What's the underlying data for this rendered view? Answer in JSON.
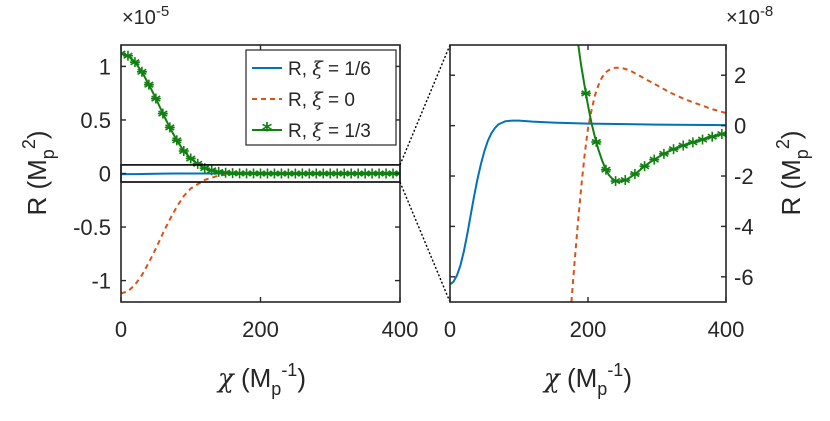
{
  "chart_data": [
    {
      "type": "line",
      "name": "main",
      "xlabel": "χ (M_p^-1)",
      "ylabel": "R (M_p^2)",
      "xlim": [
        0,
        400
      ],
      "ylim": [
        -1.2,
        1.2
      ],
      "multiplier": "×10",
      "multiplier_exp": "-5",
      "x_ticks": [
        0,
        200,
        400
      ],
      "x_tick_labels": [
        "0",
        "200",
        "400"
      ],
      "y_ticks": [
        1,
        0.5,
        0,
        -0.5,
        -1
      ],
      "y_tick_labels": [
        "1",
        "0.5",
        "0",
        "-0.5",
        "-1"
      ],
      "zoom_box_ylim": [
        -0.08,
        0.08
      ],
      "legend_position": "top-right",
      "series": [
        {
          "name": "R, ξ = 1/6",
          "legend_main": "R,",
          "legend_xi": "ξ",
          "legend_val": "= 1/6",
          "color": "#0072BD",
          "style": "solid",
          "x": [
            0,
            20,
            40,
            60,
            80,
            100,
            120,
            140,
            160,
            200,
            300,
            400
          ],
          "y": [
            -0.0063,
            -0.0057,
            -0.0035,
            -0.0012,
            -0.0002,
            0.0001,
            0.0001,
            0.0001,
            0.0001,
            0.0,
            0.0,
            0.0
          ]
        },
        {
          "name": "R, ξ = 0",
          "legend_main": "R,",
          "legend_xi": "ξ",
          "legend_val": "= 0",
          "color": "#D95319",
          "style": "dashed",
          "x": [
            0,
            10,
            20,
            30,
            40,
            50,
            60,
            70,
            80,
            90,
            100,
            120,
            140,
            160,
            180,
            200,
            250,
            300,
            400
          ],
          "y": [
            -1.12,
            -1.1,
            -1.04,
            -0.95,
            -0.83,
            -0.7,
            -0.56,
            -0.43,
            -0.31,
            -0.21,
            -0.14,
            -0.06,
            -0.02,
            -0.005,
            -0.001,
            0.0002,
            0.0002,
            0.0001,
            0.0
          ]
        },
        {
          "name": "R, ξ = 1/3",
          "legend_main": "R,",
          "legend_xi": "ξ",
          "legend_val": "= 1/3",
          "color": "#118011",
          "style": "solid-star",
          "x": [
            0,
            10,
            20,
            30,
            40,
            50,
            60,
            70,
            80,
            90,
            100,
            110,
            120,
            130,
            140,
            150,
            160,
            170,
            180,
            190,
            200,
            210,
            220,
            230,
            240,
            250,
            260,
            270,
            280,
            290,
            300,
            310,
            320,
            330,
            340,
            350,
            360,
            370,
            380,
            390,
            400
          ],
          "y": [
            1.12,
            1.1,
            1.04,
            0.95,
            0.83,
            0.7,
            0.56,
            0.43,
            0.31,
            0.21,
            0.14,
            0.09,
            0.05,
            0.03,
            0.015,
            0.007,
            0.003,
            0.001,
            0.0003,
            0.0001,
            0.0,
            -0.0001,
            -0.0002,
            -0.0002,
            -0.0002,
            -0.0002,
            -0.0002,
            -0.0002,
            -0.0001,
            -0.0001,
            -0.0001,
            -0.0001,
            -0.0001,
            -0.0001,
            -0.0001,
            0.0,
            0.0,
            0.0,
            0.0,
            0.0,
            0.0
          ]
        }
      ]
    },
    {
      "type": "line",
      "name": "zoom",
      "xlabel": "χ (M_p^-1)",
      "ylabel": "R (M_p^2)",
      "xlim": [
        0,
        400
      ],
      "ylim": [
        -7,
        3.2
      ],
      "multiplier": "×10",
      "multiplier_exp": "-8",
      "x_ticks": [
        0,
        200,
        400
      ],
      "x_tick_labels": [
        "0",
        "200",
        "400"
      ],
      "y_ticks": [
        2,
        0,
        -2,
        -4,
        -6
      ],
      "y_tick_labels": [
        "2",
        "0",
        "-2",
        "-4",
        "-6"
      ],
      "series": [
        {
          "name": "R, ξ = 1/6",
          "color": "#0072BD",
          "style": "solid",
          "x": [
            0,
            5,
            10,
            15,
            20,
            25,
            30,
            35,
            40,
            45,
            50,
            55,
            60,
            65,
            70,
            80,
            90,
            100,
            110,
            120,
            150,
            200,
            300,
            400
          ],
          "y": [
            -6.3,
            -6.2,
            -5.95,
            -5.55,
            -5.0,
            -4.3,
            -3.55,
            -2.8,
            -2.1,
            -1.5,
            -1.0,
            -0.6,
            -0.3,
            -0.1,
            0.05,
            0.17,
            0.2,
            0.2,
            0.18,
            0.16,
            0.12,
            0.08,
            0.04,
            0.02
          ]
        },
        {
          "name": "R, ξ = 0",
          "color": "#D95319",
          "style": "dashed",
          "x": [
            176,
            180,
            185,
            190,
            195,
            200,
            205,
            210,
            215,
            220,
            225,
            230,
            235,
            240,
            245,
            250,
            260,
            270,
            280,
            300,
            320,
            340,
            360,
            380,
            400
          ],
          "y": [
            -7.0,
            -5.6,
            -4.0,
            -2.5,
            -1.2,
            -0.1,
            0.6,
            1.2,
            1.6,
            1.9,
            2.1,
            2.2,
            2.27,
            2.3,
            2.3,
            2.28,
            2.2,
            2.05,
            1.9,
            1.6,
            1.3,
            1.05,
            0.85,
            0.65,
            0.5
          ]
        },
        {
          "name": "R, ξ = 1/3",
          "color": "#118011",
          "style": "solid-star",
          "x": [
            186,
            190,
            195,
            200,
            205,
            210,
            215,
            220,
            225,
            230,
            235,
            240,
            245,
            250,
            255,
            260,
            265,
            270,
            275,
            280,
            290,
            300,
            310,
            320,
            330,
            340,
            350,
            360,
            370,
            380,
            390,
            400
          ],
          "y": [
            3.2,
            2.4,
            1.6,
            0.8,
            0.1,
            -0.45,
            -0.95,
            -1.35,
            -1.7,
            -1.95,
            -2.1,
            -2.2,
            -2.22,
            -2.2,
            -2.15,
            -2.07,
            -1.98,
            -1.88,
            -1.77,
            -1.65,
            -1.45,
            -1.28,
            -1.12,
            -0.98,
            -0.87,
            -0.77,
            -0.68,
            -0.6,
            -0.52,
            -0.44,
            -0.36,
            -0.3
          ]
        }
      ],
      "star_x": [
        197,
        212,
        226,
        240,
        254,
        268,
        282,
        296,
        310,
        324,
        338,
        352,
        366,
        380,
        394
      ]
    }
  ]
}
